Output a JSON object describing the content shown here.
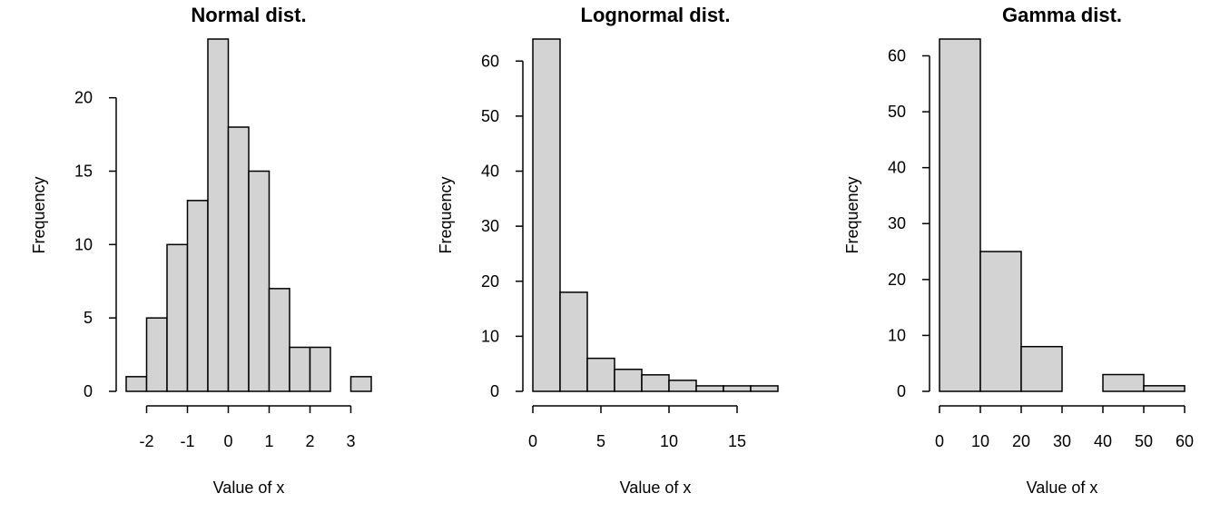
{
  "chart_data": [
    {
      "type": "bar",
      "title": "Normal dist.",
      "xlabel": "Value of x",
      "ylabel": "Frequency",
      "bin_edges": [
        -2.5,
        -2,
        -1.5,
        -1,
        -0.5,
        0,
        0.5,
        1,
        1.5,
        2,
        2.5,
        3,
        3.5
      ],
      "values": [
        1,
        5,
        10,
        13,
        24,
        18,
        15,
        7,
        3,
        3,
        0,
        1
      ],
      "xticks": [
        -2,
        -1,
        0,
        1,
        2,
        3
      ],
      "yticks": [
        0,
        5,
        10,
        15,
        20
      ],
      "xlim": [
        -2.5,
        3.5
      ],
      "ylim": [
        0,
        24
      ],
      "grid": false,
      "bar_color": "#d3d3d3"
    },
    {
      "type": "bar",
      "title": "Lognormal dist.",
      "xlabel": "Value of x",
      "ylabel": "Frequency",
      "bin_edges": [
        0,
        2,
        4,
        6,
        8,
        10,
        12,
        14,
        16,
        18
      ],
      "values": [
        64,
        18,
        6,
        4,
        3,
        2,
        1,
        1,
        1
      ],
      "xticks": [
        0,
        5,
        10,
        15
      ],
      "yticks": [
        0,
        10,
        20,
        30,
        40,
        50,
        60
      ],
      "xlim": [
        0,
        18
      ],
      "ylim": [
        0,
        64
      ],
      "grid": false,
      "bar_color": "#d3d3d3"
    },
    {
      "type": "bar",
      "title": "Gamma dist.",
      "xlabel": "Value of x",
      "ylabel": "Frequency",
      "bin_edges": [
        0,
        10,
        20,
        30,
        40,
        50,
        60
      ],
      "values": [
        63,
        25,
        8,
        0,
        3,
        1
      ],
      "xticks": [
        0,
        10,
        20,
        30,
        40,
        50,
        60
      ],
      "yticks": [
        0,
        10,
        20,
        30,
        40,
        50,
        60
      ],
      "xlim": [
        0,
        60
      ],
      "ylim": [
        0,
        63
      ],
      "grid": false,
      "bar_color": "#d3d3d3"
    }
  ]
}
